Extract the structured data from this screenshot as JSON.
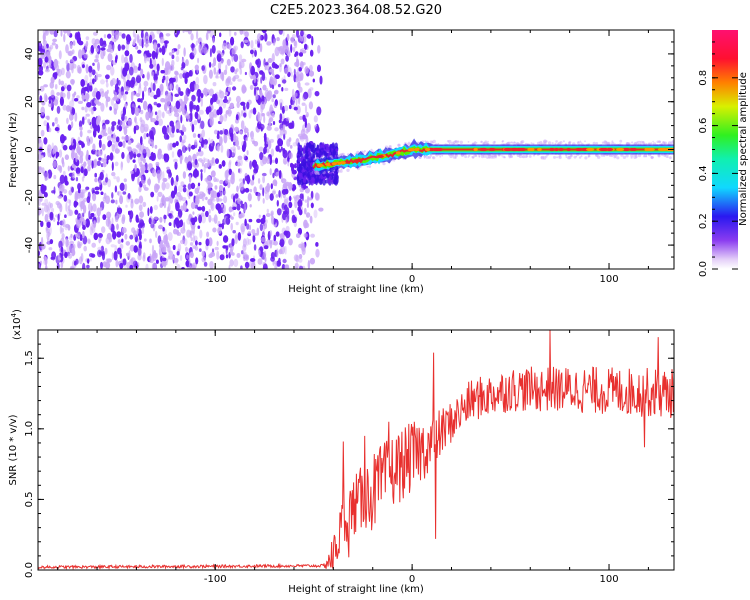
{
  "figure_title": "C2E5.2023.364.08.52.G20",
  "chart_data": [
    {
      "type": "heatmap",
      "xlabel": "Height of straight line (km)",
      "ylabel": "Frequency (Hz)",
      "xlim": [
        -190,
        133
      ],
      "ylim": [
        -50,
        50
      ],
      "x_ticks": [
        -100,
        0,
        100
      ],
      "x_tick_labels": [
        "-100",
        "0",
        "100"
      ],
      "y_ticks": [
        -40,
        -20,
        0,
        20,
        40
      ],
      "y_tick_labels": [
        "-40",
        "-20",
        "0",
        "20",
        "40"
      ],
      "noise_region_x": [
        -190,
        -50
      ],
      "noise_fade_x": [
        -55,
        -45
      ],
      "transition_x": [
        -50,
        0
      ],
      "trace": [
        {
          "x": -50,
          "f": -7
        },
        {
          "x": -40,
          "f": -6
        },
        {
          "x": -30,
          "f": -5
        },
        {
          "x": -20,
          "f": -3.5
        },
        {
          "x": -10,
          "f": -2
        },
        {
          "x": 0,
          "f": 0
        },
        {
          "x": 10,
          "f": 0
        },
        {
          "x": 133,
          "f": 0
        }
      ],
      "colorbar": {
        "label": "Normalized spectral amplitude",
        "range": [
          0,
          1
        ],
        "ticks": [
          0.0,
          0.2,
          0.4,
          0.6,
          0.8
        ],
        "tick_labels": [
          "0.0",
          "0.2",
          "0.4",
          "0.6",
          "0.8"
        ]
      },
      "colors": {
        "noise": "#6a1ff0",
        "noise_light": "#c9a6f7",
        "trace_core": "#e8262a",
        "trace_edge": "#14d9ff",
        "trace_mid": "#55f000"
      }
    },
    {
      "type": "line",
      "xlabel": "Height of straight line (km)",
      "ylabel": "SNR (10 * v/v)",
      "y_multiplier_label": "(x10",
      "y_multiplier_exp": "4",
      "y_multiplier_close": ")",
      "xlim": [
        -190,
        133
      ],
      "ylim": [
        0,
        1.7
      ],
      "x_ticks": [
        -100,
        0,
        100
      ],
      "x_tick_labels": [
        "-100",
        "0",
        "100"
      ],
      "y_ticks": [
        0.0,
        0.5,
        1.0,
        1.5
      ],
      "y_tick_labels": [
        "0.0",
        "0.5",
        "1.0",
        "1.5"
      ],
      "color": "#e8302e",
      "profile": [
        {
          "x": -190,
          "y": 0.02
        },
        {
          "x": -45,
          "y": 0.03
        },
        {
          "x": -40,
          "y": 0.1
        },
        {
          "x": -35,
          "y": 0.35
        },
        {
          "x": -30,
          "y": 0.45
        },
        {
          "x": -20,
          "y": 0.55
        },
        {
          "x": -10,
          "y": 0.7
        },
        {
          "x": 0,
          "y": 0.8
        },
        {
          "x": 10,
          "y": 0.9
        },
        {
          "x": 20,
          "y": 1.05
        },
        {
          "x": 30,
          "y": 1.2
        },
        {
          "x": 50,
          "y": 1.28
        },
        {
          "x": 80,
          "y": 1.28
        },
        {
          "x": 133,
          "y": 1.25
        }
      ],
      "noise_amp": [
        {
          "x": -190,
          "a": 0.01
        },
        {
          "x": -45,
          "a": 0.01
        },
        {
          "x": -40,
          "a": 0.15
        },
        {
          "x": -20,
          "a": 0.28
        },
        {
          "x": 0,
          "a": 0.25
        },
        {
          "x": 20,
          "a": 0.15
        },
        {
          "x": 133,
          "a": 0.18
        }
      ],
      "spikes": [
        {
          "x": -35,
          "y": 0.91
        },
        {
          "x": -32,
          "y": 0.09
        },
        {
          "x": -24,
          "y": 0.95
        },
        {
          "x": -12,
          "y": 1.05
        },
        {
          "x": 11,
          "y": 1.54
        },
        {
          "x": 12,
          "y": 0.22
        },
        {
          "x": 70,
          "y": 1.7
        },
        {
          "x": 118,
          "y": 0.87
        },
        {
          "x": 125,
          "y": 1.65
        }
      ]
    }
  ]
}
